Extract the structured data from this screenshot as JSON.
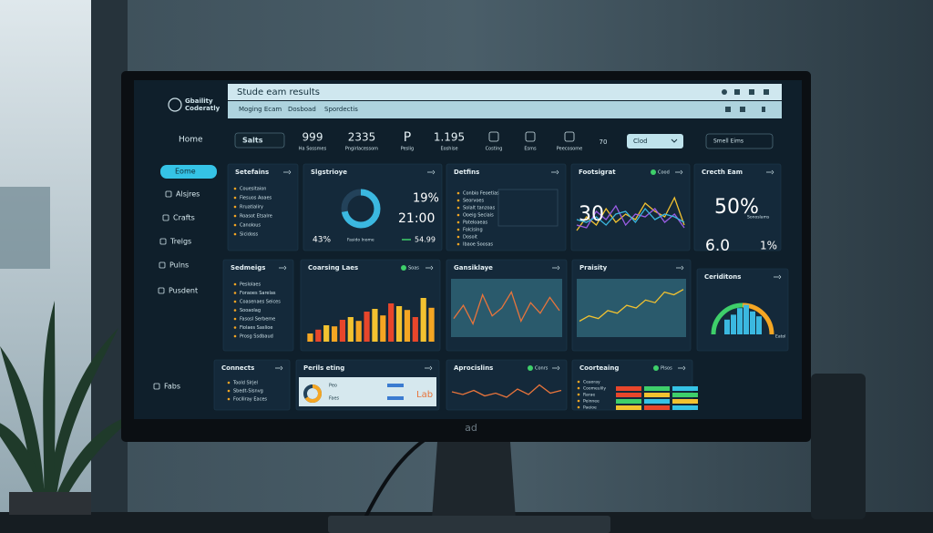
{
  "logo": [
    "Gbaility",
    "Coderatly"
  ],
  "window_title": "Stude eam results",
  "tabs": [
    "Moging Ecam",
    "Dosboad",
    "Spordectis"
  ],
  "sidebar": [
    "Home",
    "Eome",
    "Alsjres",
    "Crafts",
    "Trelgs",
    "Pulns",
    "Pusdent",
    "Fabs"
  ],
  "toolbar": {
    "button": "Salts",
    "stats": [
      {
        "value": "999",
        "label": "Ha Sossmes"
      },
      {
        "value": "2335",
        "label": "Pngirlacessom"
      },
      {
        "value": "P",
        "label": "Peslig"
      },
      {
        "value": "1.195",
        "label": "Eoshise"
      }
    ],
    "icons": [
      "Costing",
      "Esms",
      "Peecosome"
    ],
    "number": "70",
    "dropdown": "Clod",
    "search": "Smell Eims"
  },
  "panels": [
    {
      "title": "Setefains",
      "items": [
        "Couesitaion",
        "Fiesuos Aoaes",
        "Rruatialiry",
        "Roasot Etsalre",
        "Canolous",
        "Sicidoss"
      ]
    },
    {
      "title": "Slgstrioye",
      "chart": {
        "type": "donut",
        "value": 72,
        "color": "#3bb8e0"
      },
      "stats": [
        "19%",
        "21:00",
        "43%",
        "54.99"
      ],
      "caption": "Fasido Inome"
    },
    {
      "title": "Detfins",
      "items": [
        "Conbio Feoetias",
        "Seorvoes",
        "Solalt tanzoas",
        "Ooeig Seciais",
        "Pateloaeas",
        "Folcising",
        "Dosoit",
        "Ibaoe Soosas"
      ]
    },
    {
      "title": "Footsigrat",
      "badge": "Cood",
      "big": "30",
      "chart": {
        "type": "line",
        "ylim": [
          0,
          100
        ],
        "series": [
          {
            "color": "#f2c230",
            "values": [
              20,
              45,
              30,
              60,
              35,
              50,
              40,
              70,
              55,
              45,
              80,
              30
            ]
          },
          {
            "color": "#9b5de5",
            "values": [
              30,
              25,
              55,
              40,
              65,
              30,
              50,
              45,
              60,
              35,
              50,
              25
            ]
          },
          {
            "color": "#3bb8e0",
            "values": [
              40,
              35,
              45,
              30,
              50,
              55,
              35,
              60,
              40,
              50,
              45,
              35
            ]
          }
        ]
      }
    },
    {
      "title": "Crecth Eam",
      "stats": [
        "50%",
        "6.0",
        "1%"
      ],
      "caption": "Sonoslams"
    },
    {
      "title": "Sedmeigs",
      "items": [
        "Peslolaes",
        "Foraoes Sarelas",
        "Coasenaes Seices",
        "Sooaolag",
        "Fasosl Serbeme",
        "Fiolaes Saslioe",
        "Prosg Ssdbaud"
      ]
    },
    {
      "title": "Coarsing Laes",
      "badge": "Soas",
      "chart": {
        "type": "bar",
        "ylim": [
          0,
          100
        ],
        "colors": [
          "#f5a623",
          "#e8462b",
          "#f2c230"
        ],
        "values": [
          15,
          22,
          30,
          28,
          40,
          45,
          38,
          55,
          60,
          48,
          70,
          65,
          58,
          45,
          80,
          62
        ]
      }
    },
    {
      "title": "Gansiklaye",
      "chart": {
        "type": "line",
        "ylim": [
          0,
          100
        ],
        "series": [
          {
            "color": "#e8743b",
            "values": [
              30,
              55,
              20,
              75,
              35,
              50,
              80,
              25,
              60,
              40,
              70,
              45
            ]
          }
        ]
      }
    },
    {
      "title": "Praisity",
      "chart": {
        "type": "line",
        "ylim": [
          0,
          100
        ],
        "series": [
          {
            "color": "#f2c230",
            "values": [
              25,
              35,
              30,
              45,
              40,
              55,
              50,
              65,
              60,
              80,
              75,
              85
            ]
          }
        ]
      }
    },
    {
      "title": "Ceriditons",
      "caption": "Eatol",
      "chart": {
        "type": "gauge",
        "ylim": [
          0,
          100
        ],
        "color": "#3bb8e0",
        "values": [
          45,
          60,
          80,
          90,
          70,
          55
        ]
      }
    },
    {
      "title": "Connects",
      "items": [
        "Toold Slrjel",
        "Sbedt-Sisnvg",
        "Fociliray Eaces"
      ]
    },
    {
      "title": "Perils eting",
      "label": "Lab",
      "chart": {
        "type": "donut",
        "value": 65,
        "color": "#f5a623"
      },
      "items": [
        "Peo",
        "Faes"
      ]
    },
    {
      "title": "Aprocislins",
      "badge": "Conrs",
      "chart": {
        "type": "line",
        "ylim": [
          0,
          100
        ],
        "series": [
          {
            "color": "#e8743b",
            "values": [
              50,
              40,
              55,
              35,
              45,
              30,
              60,
              40,
              75,
              45,
              55
            ]
          }
        ]
      }
    },
    {
      "title": "Coorteaing",
      "badge": "Plsos",
      "items": [
        "Ceaoray",
        "Coomeulily",
        "Rarae",
        "Peinnee",
        "Paeioe"
      ]
    }
  ],
  "monitor_brand": "ad"
}
